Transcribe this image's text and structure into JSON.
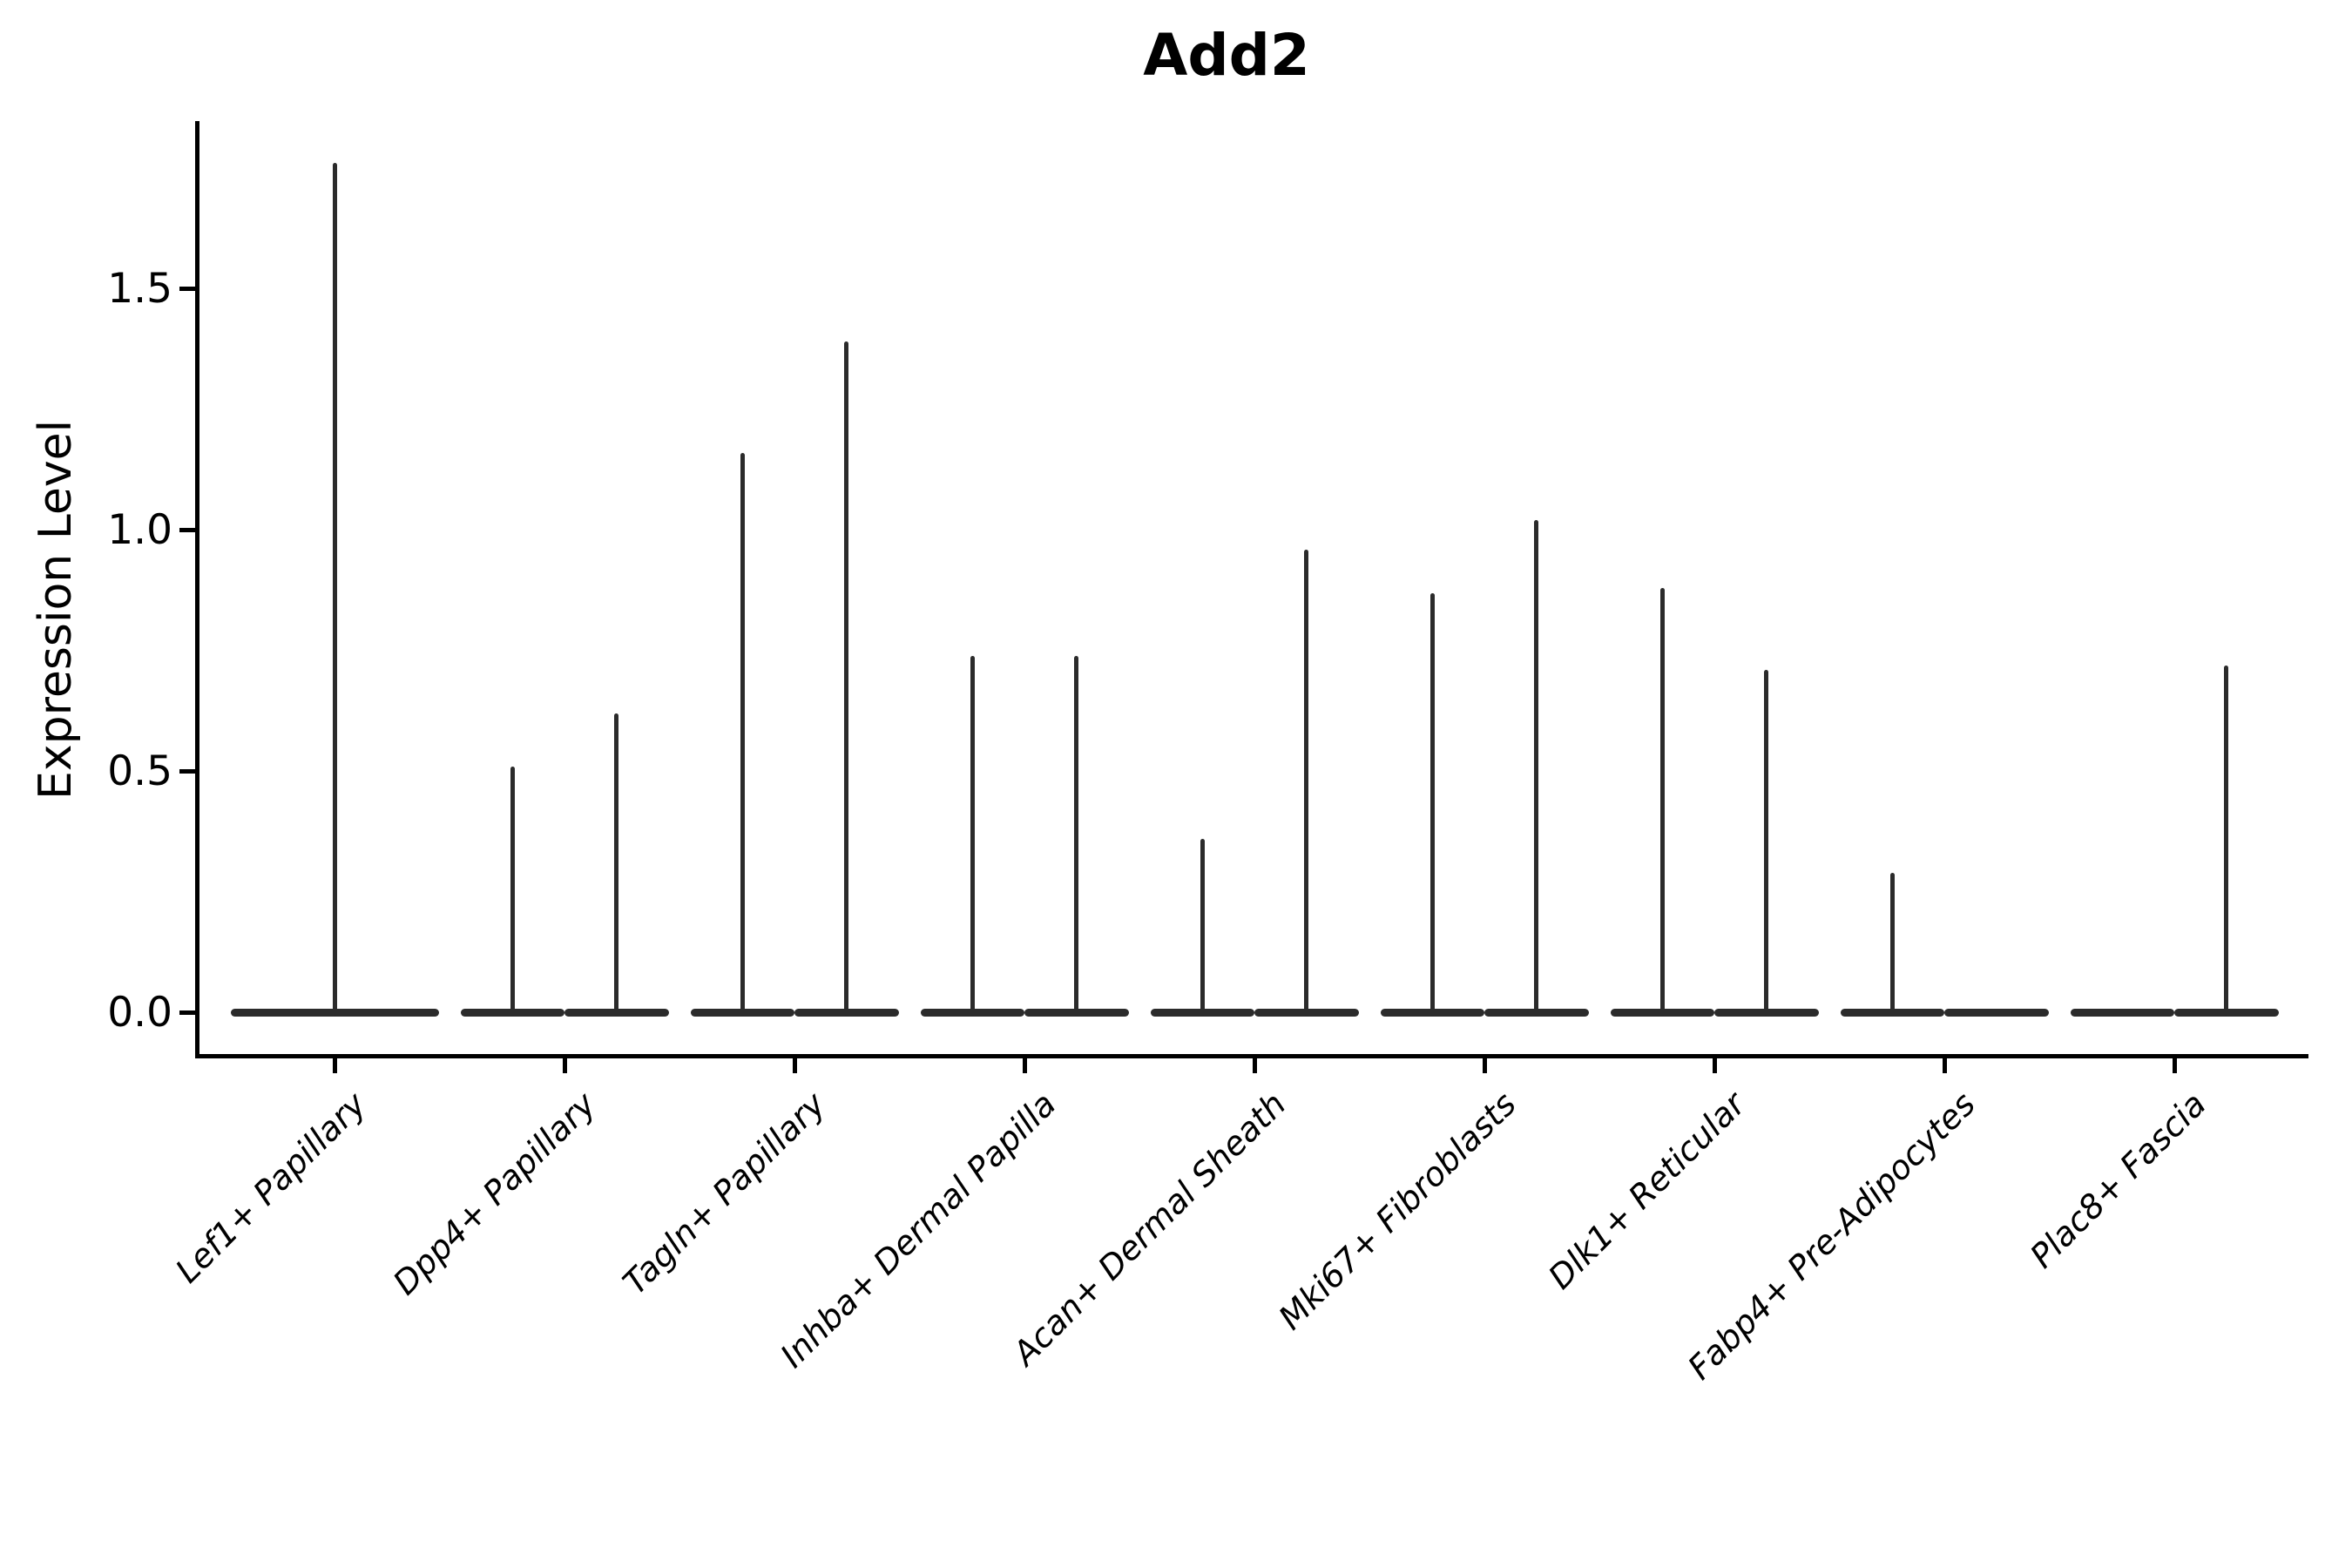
{
  "title": "Add2",
  "y_axis": {
    "label": "Expression Level",
    "tick_labels": [
      "0.0",
      "0.5",
      "1.0",
      "1.5"
    ]
  },
  "chart_data": {
    "type": "violin",
    "title": "Add2",
    "xlabel": "",
    "ylabel": "Expression Level",
    "ytick_values": [
      0.0,
      0.5,
      1.0,
      1.5
    ],
    "ylim": [
      -0.09,
      1.85
    ],
    "grid": false,
    "legend": "none",
    "categories": [
      "Lef1+ Papillary",
      "Dpp4+ Papillary",
      "Tagln+ Papillary",
      "Inhba+ Dermal Papilla",
      "Acan+ Dermal Sheath",
      "Mki67+ Fibroblasts",
      "Dlk1+ Reticular",
      "Fabp4+ Pre-Adipocytes",
      "Plac8+ Fascia"
    ],
    "description": "Zero-inflated expression violins: each violin collapses to a flat bar at 0 with a thin spike up to the max expression value. Most categories contain two side-by-side violins; a max of 0 means a flat violin with no spike.",
    "violins": [
      {
        "category": "Lef1+ Papillary",
        "parts": [
          {
            "position": "full",
            "max": 1.76
          }
        ]
      },
      {
        "category": "Dpp4+ Papillary",
        "parts": [
          {
            "position": "left",
            "max": 0.51
          },
          {
            "position": "right",
            "max": 0.62
          }
        ]
      },
      {
        "category": "Tagln+ Papillary",
        "parts": [
          {
            "position": "left",
            "max": 1.16
          },
          {
            "position": "right",
            "max": 1.39
          }
        ]
      },
      {
        "category": "Inhba+ Dermal Papilla",
        "parts": [
          {
            "position": "left",
            "max": 0.74
          },
          {
            "position": "right",
            "max": 0.74
          }
        ]
      },
      {
        "category": "Acan+ Dermal Sheath",
        "parts": [
          {
            "position": "left",
            "max": 0.36
          },
          {
            "position": "right",
            "max": 0.96
          }
        ]
      },
      {
        "category": "Mki67+ Fibroblasts",
        "parts": [
          {
            "position": "left",
            "max": 0.87
          },
          {
            "position": "right",
            "max": 1.02
          }
        ]
      },
      {
        "category": "Dlk1+ Reticular",
        "parts": [
          {
            "position": "left",
            "max": 0.88
          },
          {
            "position": "right",
            "max": 0.71
          }
        ]
      },
      {
        "category": "Fabp4+ Pre-Adipocytes",
        "parts": [
          {
            "position": "left",
            "max": 0.29
          },
          {
            "position": "right",
            "max": 0.0
          }
        ]
      },
      {
        "category": "Plac8+ Fascia",
        "parts": [
          {
            "position": "left",
            "max": 0.0
          },
          {
            "position": "right",
            "max": 0.72
          }
        ]
      }
    ],
    "colors": {
      "violin": "#2b2b2b",
      "axis": "#000000",
      "text": "#000000",
      "background": "#ffffff"
    }
  }
}
